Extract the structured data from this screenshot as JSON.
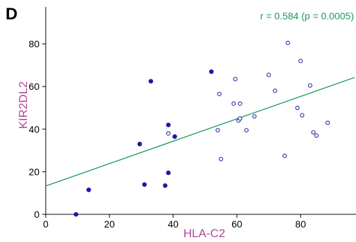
{
  "chart_data": {
    "type": "scatter",
    "panel_label": "D",
    "xlabel": "HLA-C2",
    "ylabel": "KIR2DL2",
    "xlim": [
      0,
      97
    ],
    "ylim": [
      0,
      82
    ],
    "x_ticks": [
      0,
      20,
      40,
      60,
      80
    ],
    "y_ticks": [
      0,
      20,
      40,
      60,
      80
    ],
    "grid": false,
    "annotation": "r = 0.584 (p = 0.0005)",
    "colors": {
      "points": "#1a1aa6",
      "fit_line": "#1a9a5a",
      "axis_title": "#b0479a",
      "annotation": "#1a9a5a"
    },
    "fit_line": {
      "x": [
        0,
        97
      ],
      "y": [
        13.3,
        64.3
      ]
    },
    "series": [
      {
        "marker": "filled",
        "points": [
          [
            9.5,
            0
          ],
          [
            13.5,
            11.5
          ],
          [
            29.5,
            33
          ],
          [
            31,
            14
          ],
          [
            33,
            62.5
          ],
          [
            37.5,
            13.5
          ],
          [
            38.5,
            19.5
          ],
          [
            38.5,
            42
          ],
          [
            40.5,
            36.5
          ],
          [
            52,
            67
          ]
        ]
      },
      {
        "marker": "open",
        "points": [
          [
            38.5,
            38
          ],
          [
            54,
            39.5
          ],
          [
            54.5,
            56.5
          ],
          [
            55,
            26
          ],
          [
            59,
            52
          ],
          [
            59.5,
            63.5
          ],
          [
            60.5,
            44
          ],
          [
            61,
            45
          ],
          [
            61,
            52
          ],
          [
            63,
            39.5
          ],
          [
            65.5,
            46
          ],
          [
            70,
            65.5
          ],
          [
            72,
            58
          ],
          [
            75,
            27.5
          ],
          [
            76,
            80.5
          ],
          [
            79,
            50
          ],
          [
            80,
            72
          ],
          [
            80.5,
            46.5
          ],
          [
            83,
            60.5
          ],
          [
            84,
            38.5
          ],
          [
            85,
            37
          ],
          [
            88.5,
            43
          ]
        ]
      }
    ]
  }
}
